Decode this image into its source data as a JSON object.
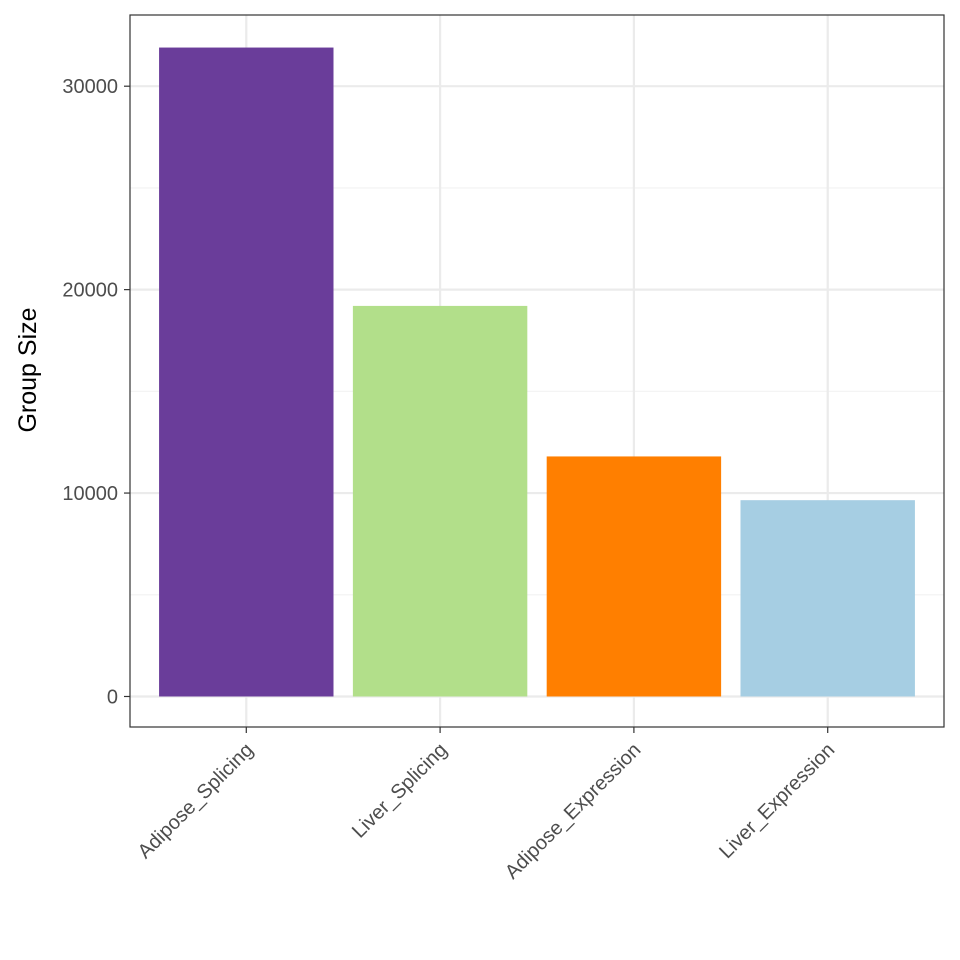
{
  "chart_data": {
    "type": "bar",
    "categories": [
      "Adipose_Splicing",
      "Liver_Splicing",
      "Adipose_Expression",
      "Liver_Expression"
    ],
    "values": [
      31900,
      19200,
      11800,
      9650
    ],
    "colors": [
      "#6a3d9a",
      "#b2df8a",
      "#ff7f00",
      "#a6cee3"
    ],
    "title": "",
    "xlabel": "",
    "ylabel": "Group Size",
    "ylim": [
      -1500,
      33500
    ],
    "yticks": [
      0,
      10000,
      20000,
      30000
    ],
    "ytick_labels": [
      "0",
      "10000",
      "20000",
      "30000"
    ],
    "y_minor_gridlines": [
      5000,
      15000,
      25000
    ],
    "grid": true,
    "legend": "none",
    "theme": {
      "panel_border": "#333333",
      "grid_major": "#ebebeb",
      "grid_minor": "#f2f2f2",
      "tick_color": "#333333"
    }
  }
}
